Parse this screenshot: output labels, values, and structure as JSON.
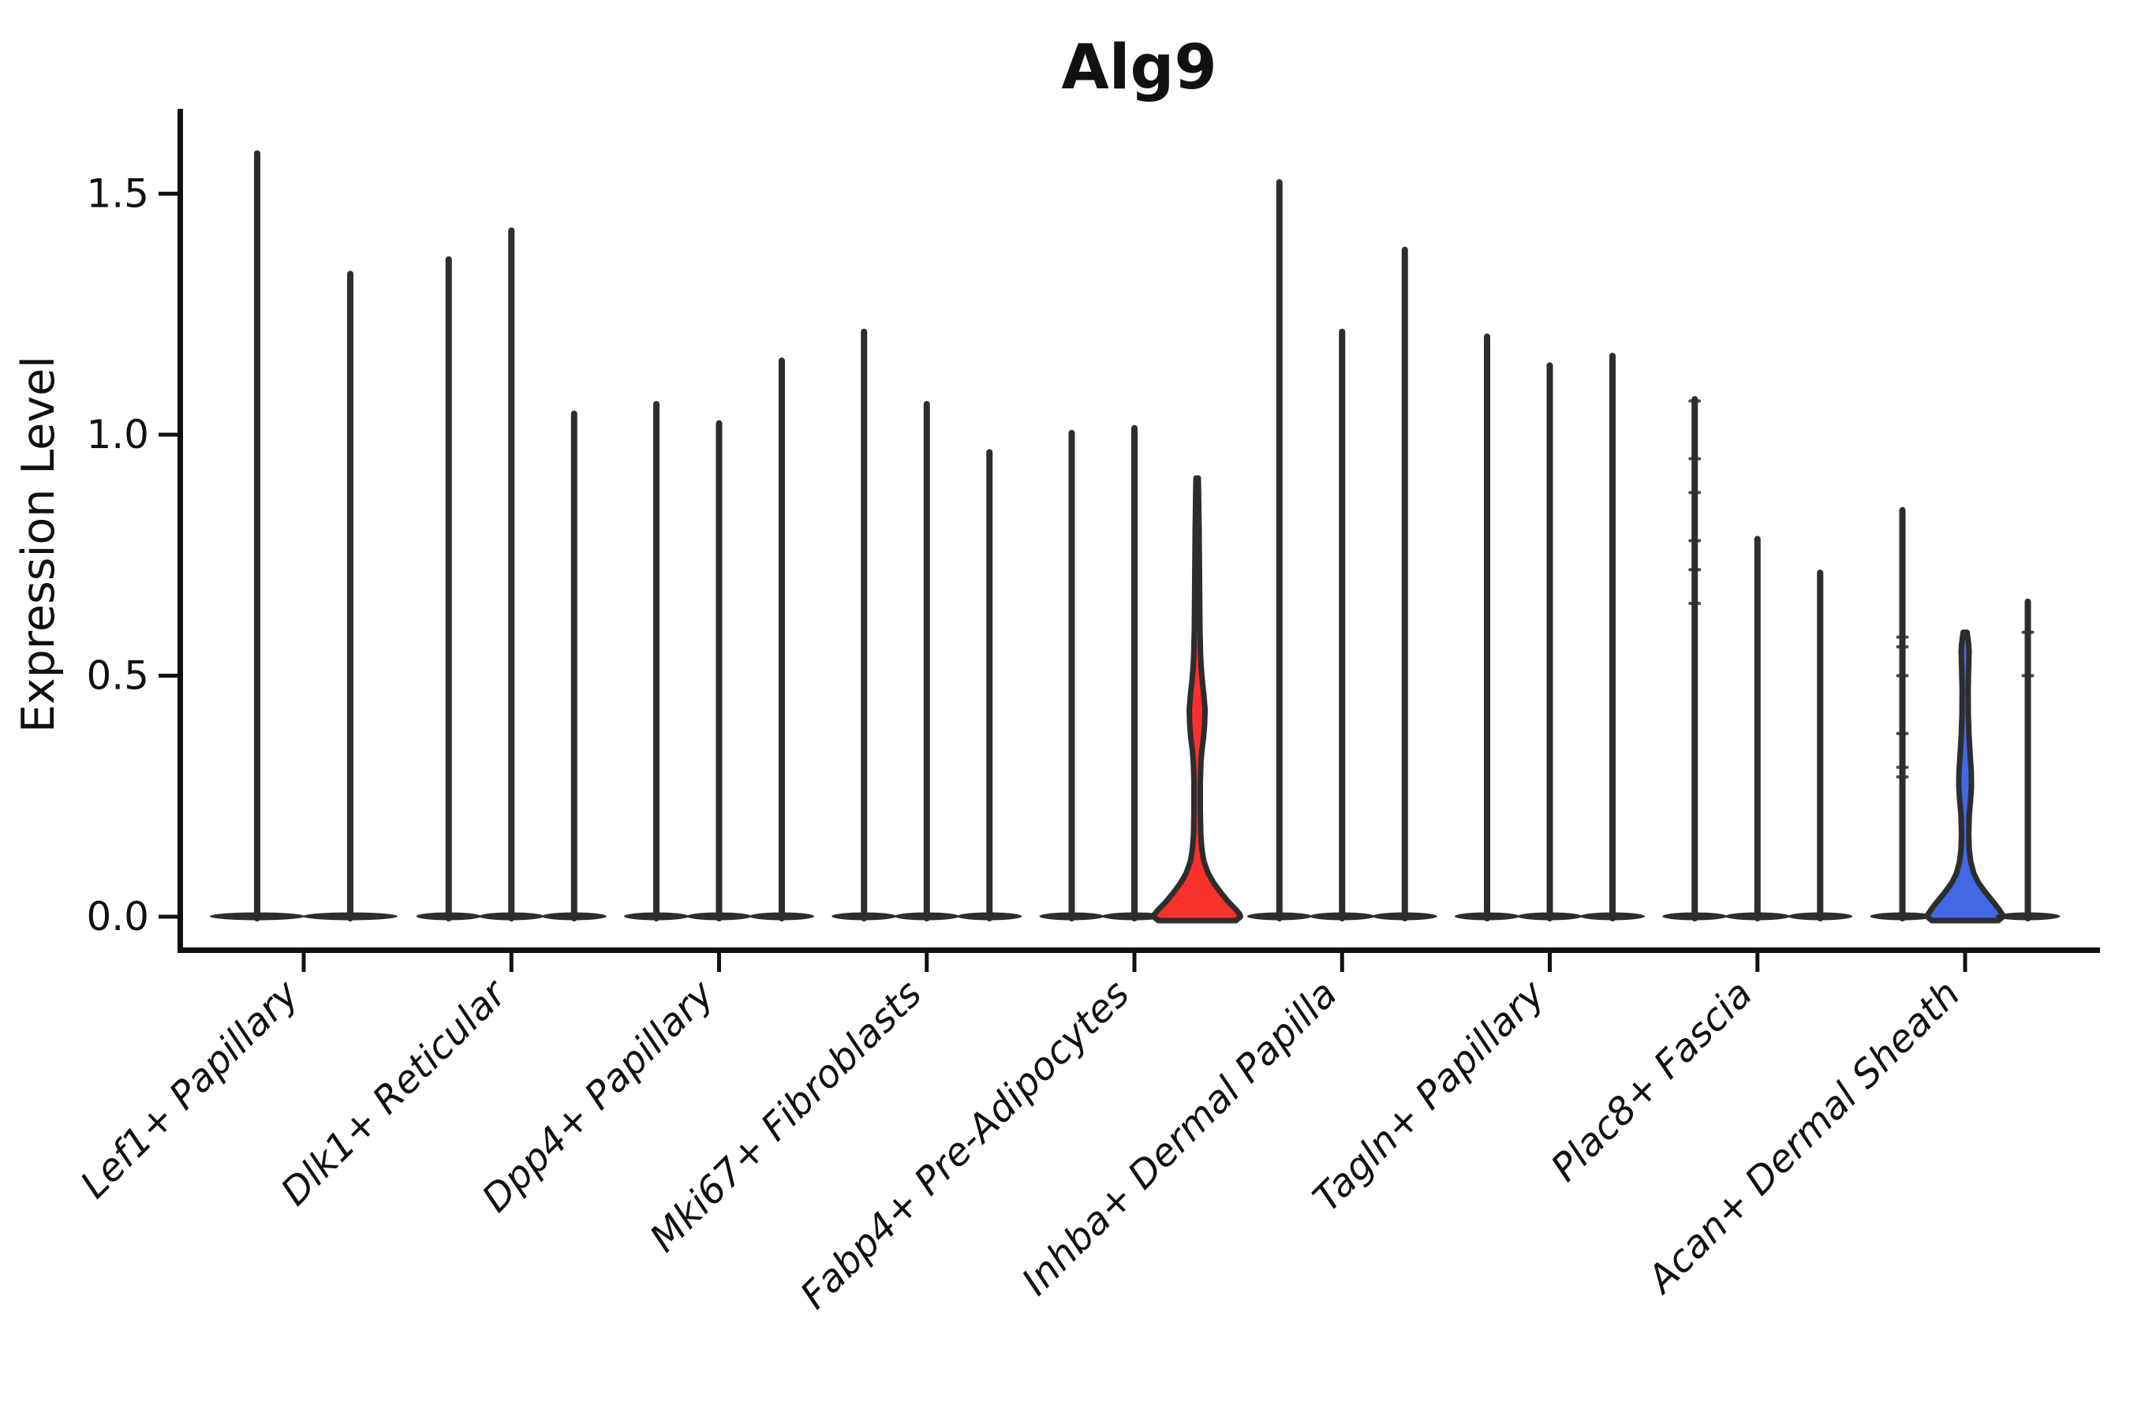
{
  "chart_data": {
    "type": "violin",
    "title": "Alg9",
    "xlabel": "",
    "ylabel": "Expression Level",
    "yticks": [
      {
        "label": "0.0",
        "value": 0.0
      },
      {
        "label": "0.5",
        "value": 0.5
      },
      {
        "label": "1.0",
        "value": 1.0
      },
      {
        "label": "1.5",
        "value": 1.5
      }
    ],
    "ylim": [
      0,
      1.67
    ],
    "grid": false,
    "legend": "none",
    "x_label_rotation_deg": 45,
    "x_label_style": "italic",
    "colors": {
      "violin_outline": "#2d2d2d",
      "axis_spine": "#111111",
      "highlight_red": "#f8312d",
      "highlight_blue": "#4268e3"
    },
    "categories": [
      {
        "label": "Lef1+ Papillary",
        "violins": [
          {
            "max": 1.59,
            "fill": "none"
          },
          {
            "max": 1.34,
            "fill": "none"
          }
        ]
      },
      {
        "label": "Dlk1+ Reticular",
        "violins": [
          {
            "max": 1.37,
            "fill": "none"
          },
          {
            "max": 1.43,
            "fill": "none"
          },
          {
            "max": 1.05,
            "fill": "none"
          }
        ]
      },
      {
        "label": "Dpp4+ Papillary",
        "violins": [
          {
            "max": 1.07,
            "fill": "none"
          },
          {
            "max": 1.03,
            "fill": "none"
          },
          {
            "max": 1.16,
            "fill": "none"
          }
        ]
      },
      {
        "label": "Mki67+ Fibroblasts",
        "violins": [
          {
            "max": 1.22,
            "fill": "none"
          },
          {
            "max": 1.07,
            "fill": "none"
          },
          {
            "max": 0.97,
            "fill": "none"
          }
        ]
      },
      {
        "label": "Fabp4+ Pre-Adipocytes",
        "violins": [
          {
            "max": 1.01,
            "fill": "none"
          },
          {
            "max": 1.02,
            "fill": "none"
          },
          {
            "max": 0.91,
            "fill": "red",
            "profile": [
              [
                0.91,
                1.5
              ],
              [
                0.8,
                2.5
              ],
              [
                0.7,
                3.0
              ],
              [
                0.6,
                3.5
              ],
              [
                0.55,
                4.2
              ],
              [
                0.52,
                5.0
              ],
              [
                0.49,
                6.5
              ],
              [
                0.46,
                8.5
              ],
              [
                0.43,
                10.0
              ],
              [
                0.4,
                9.5
              ],
              [
                0.37,
                8.0
              ],
              [
                0.345,
                6.0
              ],
              [
                0.32,
                4.8
              ],
              [
                0.28,
                4.0
              ],
              [
                0.22,
                4.0
              ],
              [
                0.17,
                4.6
              ],
              [
                0.14,
                6.0
              ],
              [
                0.115,
                8.5
              ],
              [
                0.09,
                14.0
              ],
              [
                0.07,
                21.0
              ],
              [
                0.05,
                30.0
              ],
              [
                0.03,
                40.0
              ],
              [
                0.015,
                49.0
              ],
              [
                0.005,
                54.0
              ],
              [
                0.0,
                55.0
              ]
            ]
          }
        ]
      },
      {
        "label": "Inhba+ Dermal Papilla",
        "violins": [
          {
            "max": 1.53,
            "fill": "none"
          },
          {
            "max": 1.22,
            "fill": "none"
          },
          {
            "max": 1.39,
            "fill": "none"
          }
        ]
      },
      {
        "label": "Tagln+ Papillary",
        "violins": [
          {
            "max": 1.21,
            "fill": "none"
          },
          {
            "max": 1.15,
            "fill": "none"
          },
          {
            "max": 1.17,
            "fill": "none"
          }
        ]
      },
      {
        "label": "Plac8+ Fascia",
        "violins": [
          {
            "max": 1.08,
            "fill": "none",
            "points": [
              1.07,
              0.95,
              0.88,
              0.78,
              0.72,
              0.65
            ]
          },
          {
            "max": 0.79,
            "fill": "none"
          },
          {
            "max": 0.72,
            "fill": "none"
          }
        ]
      },
      {
        "label": "Acan+ Dermal Sheath",
        "violins": [
          {
            "max": 0.85,
            "fill": "none",
            "points": [
              0.58,
              0.56,
              0.5,
              0.38,
              0.31,
              0.29
            ]
          },
          {
            "max": 0.59,
            "fill": "blue",
            "profile": [
              [
                0.59,
                2.5
              ],
              [
                0.565,
                4.5
              ],
              [
                0.55,
                5.0
              ],
              [
                0.52,
                4.5
              ],
              [
                0.47,
                3.8
              ],
              [
                0.42,
                4.0
              ],
              [
                0.38,
                4.8
              ],
              [
                0.34,
                6.2
              ],
              [
                0.3,
                7.8
              ],
              [
                0.27,
                8.0
              ],
              [
                0.24,
                6.8
              ],
              [
                0.21,
                5.2
              ],
              [
                0.17,
                4.6
              ],
              [
                0.14,
                5.2
              ],
              [
                0.115,
                7.0
              ],
              [
                0.09,
                11.0
              ],
              [
                0.07,
                17.0
              ],
              [
                0.05,
                26.0
              ],
              [
                0.03,
                36.0
              ],
              [
                0.015,
                43.0
              ],
              [
                0.005,
                47.0
              ],
              [
                0.0,
                48.0
              ]
            ]
          },
          {
            "max": 0.66,
            "fill": "none",
            "points": [
              0.59,
              0.5
            ]
          }
        ]
      }
    ]
  }
}
